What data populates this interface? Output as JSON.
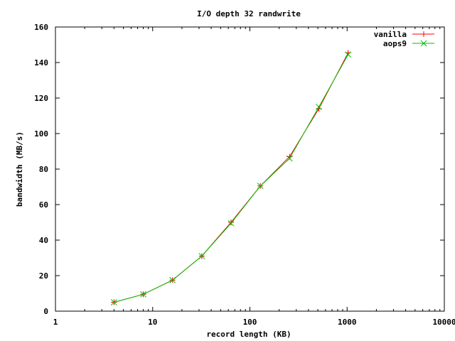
{
  "chart_data": {
    "type": "line",
    "title": "I/O depth 32 randwrite",
    "xlabel": "record length (KB)",
    "ylabel": "bandwidth (MB/s)",
    "xscale": "log",
    "xlim": [
      1,
      10000
    ],
    "ylim": [
      0,
      160
    ],
    "xticks": [
      1,
      10,
      100,
      1000,
      10000
    ],
    "xtick_labels": [
      "1",
      "10",
      "100",
      "1000",
      "10000"
    ],
    "yticks": [
      0,
      20,
      40,
      60,
      80,
      100,
      120,
      140,
      160
    ],
    "ytick_labels": [
      "0",
      "20",
      "40",
      "60",
      "80",
      "100",
      "120",
      "140",
      "160"
    ],
    "grid": false,
    "legend_position": "top-right",
    "x": [
      4,
      8,
      16,
      32,
      64,
      128,
      256,
      512,
      1024
    ],
    "series": [
      {
        "name": "vanilla",
        "color": "#ff0000",
        "marker": "plus",
        "values": [
          5,
          9.5,
          17.5,
          31,
          50,
          70.5,
          87,
          114,
          145.5
        ]
      },
      {
        "name": "aops9",
        "color": "#00c000",
        "marker": "cross",
        "values": [
          5,
          9.5,
          17.5,
          31,
          49.5,
          70.5,
          86,
          115,
          144.5
        ]
      }
    ]
  }
}
